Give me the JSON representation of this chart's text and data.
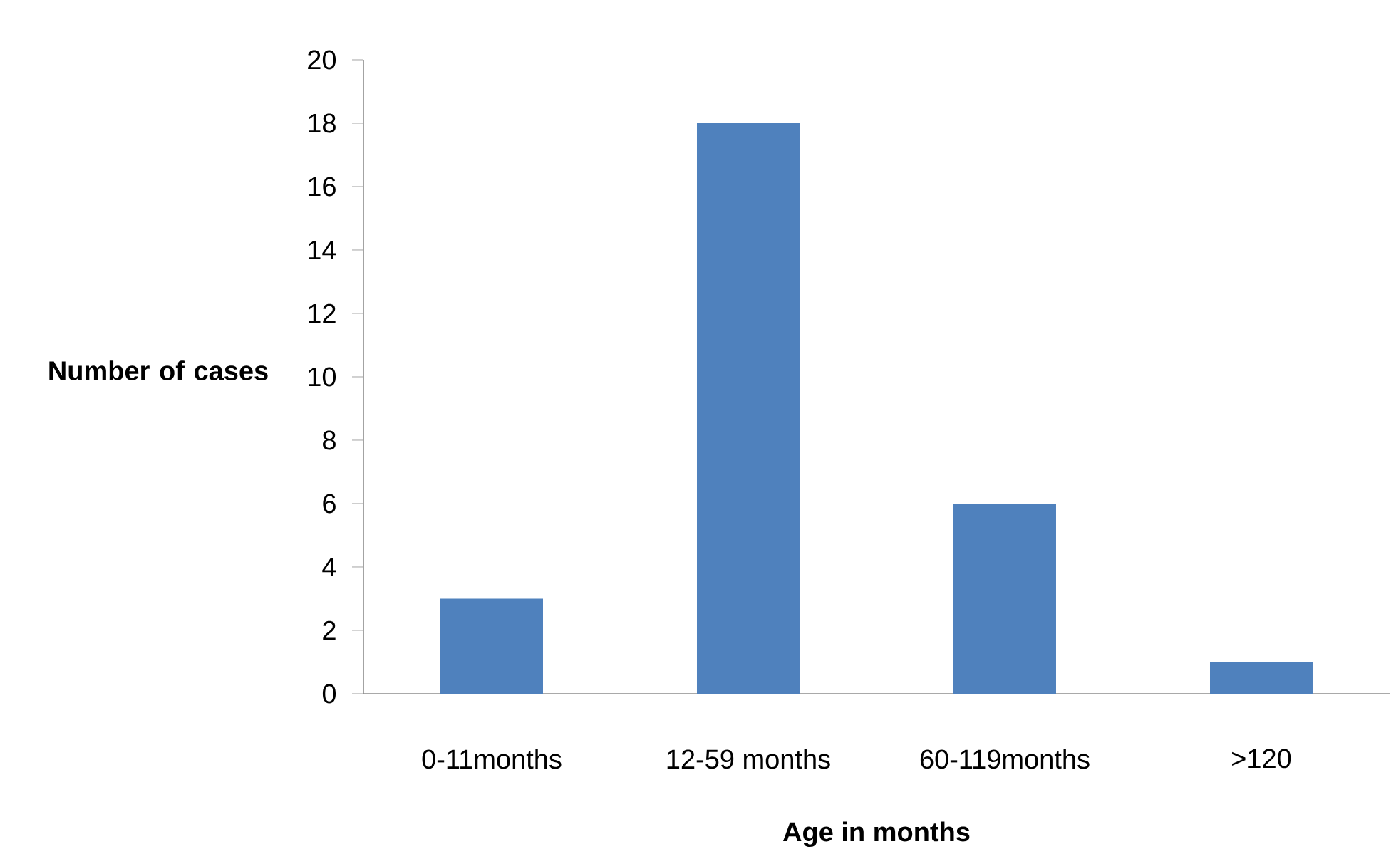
{
  "chart_data": {
    "type": "bar",
    "categories": [
      "0-11months",
      "12-59 months",
      "60-119months",
      ">120"
    ],
    "values": [
      3,
      18,
      6,
      1
    ],
    "color": "#4f81bd",
    "xlabel": "Age in months",
    "ylabel": "Number of cases",
    "ylim": [
      0,
      20
    ],
    "yticks": [
      0,
      2,
      4,
      6,
      8,
      10,
      12,
      14,
      16,
      18,
      20
    ]
  }
}
